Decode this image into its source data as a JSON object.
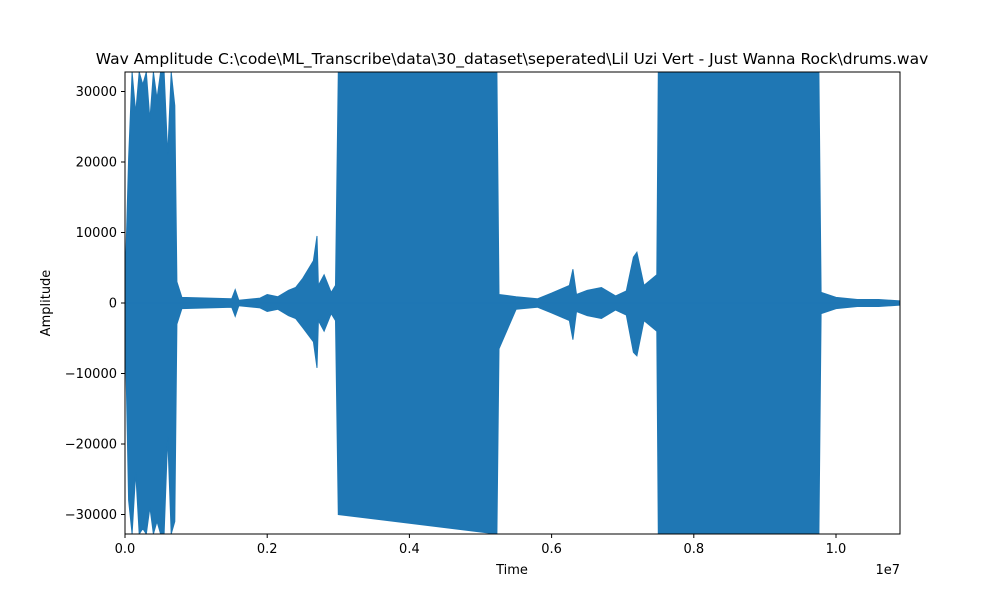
{
  "chart_data": {
    "type": "line",
    "title": "Wav Amplitude C:\\code\\ML_Transcribe\\data\\30_dataset\\seperated\\Lil Uzi Vert - Just Wanna Rock\\drums.wav",
    "xlabel": "Time",
    "ylabel": "Amplitude",
    "x_offset_text": "1e7",
    "xlim": [
      0,
      10900000.0
    ],
    "ylim": [
      -32768,
      32767
    ],
    "xticks": [
      0,
      2000000,
      4000000,
      6000000,
      8000000,
      10000000
    ],
    "xtick_labels": [
      "0.0",
      "0.2",
      "0.4",
      "0.6",
      "0.8",
      "1.0"
    ],
    "yticks": [
      -30000,
      -20000,
      -10000,
      0,
      10000,
      20000,
      30000
    ],
    "ytick_labels": [
      "−30000",
      "−20000",
      "−10000",
      "0",
      "10000",
      "20000",
      "30000"
    ],
    "grid": false,
    "series": [
      {
        "color": "#1f77b4",
        "envelope": {
          "x": [
            0,
            50000,
            100000,
            150000,
            200000,
            250000,
            300000,
            350000,
            400000,
            450000,
            500000,
            550000,
            600000,
            650000,
            700000,
            730000,
            800000,
            1500000,
            1550000,
            1600000,
            1900000,
            2000000,
            2150000,
            2300000,
            2400000,
            2500000,
            2650000,
            2700000,
            2720000,
            2800000,
            2900000,
            2960000,
            3000000,
            5230000,
            5260000,
            5500000,
            5800000,
            6000000,
            6250000,
            6300000,
            6350000,
            6500000,
            6700000,
            6900000,
            7050000,
            7150000,
            7200000,
            7300000,
            7480000,
            7500000,
            9760000,
            9790000,
            10000000,
            10300000,
            10600000,
            10900000
          ],
          "max": [
            2000,
            20500,
            32767,
            27000,
            32767,
            31000,
            32767,
            26000,
            32767,
            29000,
            32767,
            32767,
            21000,
            32767,
            28000,
            3000,
            800,
            600,
            1900,
            400,
            700,
            1200,
            900,
            1800,
            2200,
            3500,
            6000,
            9500,
            2500,
            4000,
            1500,
            2500,
            32767,
            32767,
            1200,
            900,
            600,
            1400,
            2500,
            4800,
            1200,
            1800,
            2200,
            1000,
            1700,
            6500,
            7200,
            2500,
            4000,
            32767,
            32767,
            1500,
            800,
            500,
            500,
            300
          ],
          "min": [
            -2000,
            -28000,
            -32767,
            -24000,
            -32767,
            -32000,
            -32767,
            -29000,
            -32767,
            -31000,
            -32767,
            -32767,
            -19000,
            -32767,
            -31000,
            -3000,
            -800,
            -600,
            -1900,
            -400,
            -700,
            -1200,
            -900,
            -1800,
            -2200,
            -3500,
            -5500,
            -9200,
            -2500,
            -4000,
            -1500,
            -2500,
            -30000,
            -32767,
            -6500,
            -900,
            -600,
            -1400,
            -2500,
            -5200,
            -1200,
            -1800,
            -2200,
            -1000,
            -1700,
            -7000,
            -7500,
            -2500,
            -4000,
            -32767,
            -32767,
            -1500,
            -800,
            -500,
            -500,
            -300
          ]
        }
      }
    ]
  }
}
